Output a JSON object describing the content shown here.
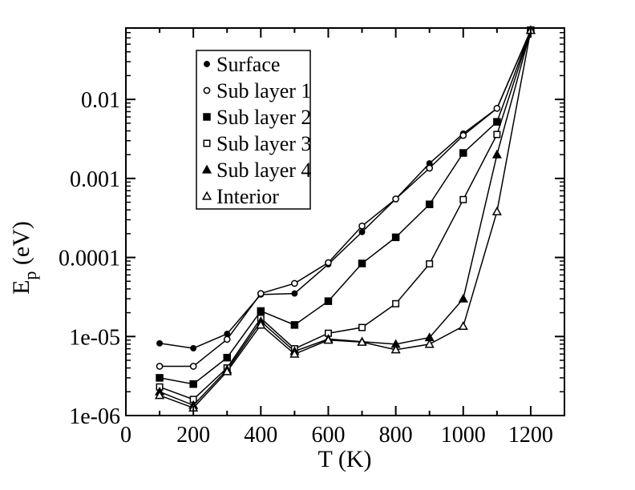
{
  "chart_data": {
    "type": "line",
    "title": "",
    "xlabel": "T (K)",
    "ylabel_main": "E",
    "ylabel_sub": "p",
    "ylabel_unit": " (eV)",
    "x_scale": "linear",
    "y_scale": "log",
    "xlim": [
      0,
      1300
    ],
    "ylim": [
      1e-06,
      0.08
    ],
    "grid": false,
    "legend_position": "top-left",
    "x_ticks": [
      0,
      200,
      400,
      600,
      800,
      1000,
      1200
    ],
    "x_tick_labels": [
      "0",
      "200",
      "400",
      "600",
      "800",
      "1000",
      "1200"
    ],
    "y_ticks": [
      1e-06,
      1e-05,
      0.0001,
      0.001,
      0.01
    ],
    "y_tick_labels": [
      "1e-06",
      "1e-05",
      "0.0001",
      "0.001",
      "0.01"
    ],
    "x": [
      100,
      200,
      300,
      400,
      500,
      600,
      700,
      800,
      900,
      1000,
      1100,
      1200
    ],
    "series": [
      {
        "name": "Surface",
        "marker": "dot-filled",
        "values": [
          8.2e-06,
          7.1e-06,
          1.08e-05,
          3.4e-05,
          3.5e-05,
          8.2e-05,
          0.00021,
          0.00055,
          0.00155,
          0.0037,
          0.0077,
          0.075
        ]
      },
      {
        "name": "Sub layer 1",
        "marker": "circle-open",
        "values": [
          4.2e-06,
          4.2e-06,
          9.2e-06,
          3.5e-05,
          4.7e-05,
          8.6e-05,
          0.00025,
          0.00055,
          0.00135,
          0.0035,
          0.0077,
          0.075
        ]
      },
      {
        "name": "Sub layer 2",
        "marker": "square-filled",
        "values": [
          3e-06,
          2.5e-06,
          5.4e-06,
          2.1e-05,
          1.4e-05,
          2.8e-05,
          8.4e-05,
          0.00018,
          0.00047,
          0.0021,
          0.0052,
          0.075
        ]
      },
      {
        "name": "Sub layer 3",
        "marker": "square-open",
        "values": [
          2.3e-06,
          1.6e-06,
          4e-06,
          1.7e-05,
          7e-06,
          1.1e-05,
          1.3e-05,
          2.6e-05,
          8.3e-05,
          0.00054,
          0.0036,
          0.075
        ]
      },
      {
        "name": "Sub layer 4",
        "marker": "triangle-filled",
        "values": [
          2e-06,
          1.35e-06,
          3.8e-06,
          1.55e-05,
          6.5e-06,
          9.3e-06,
          8.6e-06,
          8e-06,
          9.7e-06,
          3e-05,
          0.002,
          0.075
        ]
      },
      {
        "name": "Interior",
        "marker": "triangle-open",
        "values": [
          1.8e-06,
          1.25e-06,
          3.6e-06,
          1.4e-05,
          6e-06,
          9e-06,
          8.5e-06,
          6.8e-06,
          8e-06,
          1.35e-05,
          0.00038,
          0.075
        ]
      }
    ]
  }
}
